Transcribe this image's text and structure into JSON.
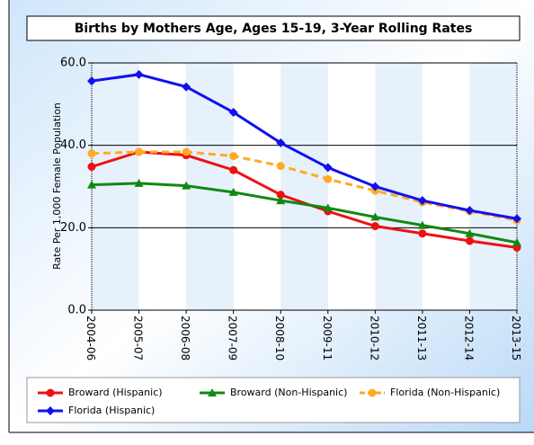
{
  "chart_data": {
    "type": "line",
    "title": "Births by Mothers Age, Ages 15-19, 3-Year Rolling Rates",
    "y_label": "Rate Per 1,000 Female Population",
    "categories": [
      "2004-06",
      "2005-07",
      "2006-08",
      "2007-09",
      "2008-10",
      "2009-11",
      "2010-12",
      "2011-13",
      "2012-14",
      "2013-15"
    ],
    "series": [
      {
        "name": "Broward (Hispanic)",
        "color": "#ee1111",
        "marker": "circle",
        "dash": false,
        "values": [
          34.8,
          38.4,
          37.6,
          34,
          28,
          24,
          20.4,
          18.6,
          16.8,
          15.2
        ]
      },
      {
        "name": "Broward (Non-Hispanic)",
        "color": "#118811",
        "marker": "triangle",
        "dash": false,
        "values": [
          30.4,
          30.8,
          30.2,
          28.6,
          26.6,
          24.8,
          22.6,
          20.6,
          18.6,
          16.4
        ]
      },
      {
        "name": "Florida (Non-Hispanic)",
        "color": "#ffaa22",
        "marker": "circle",
        "dash": true,
        "values": [
          38,
          38.4,
          38.4,
          37.4,
          35,
          31.8,
          29,
          26.2,
          24,
          21.8
        ]
      },
      {
        "name": "Florida (Hispanic)",
        "color": "#1111ee",
        "marker": "diamond",
        "dash": false,
        "values": [
          55.6,
          57.2,
          54.2,
          48,
          40.6,
          34.6,
          30,
          26.6,
          24.2,
          22.2
        ]
      }
    ],
    "ylim": [
      0,
      60
    ],
    "yticks": [
      {
        "value": 0,
        "label": "0.0"
      },
      {
        "value": 20,
        "label": "20.0"
      },
      {
        "value": 40,
        "label": "40.0"
      },
      {
        "value": 60,
        "label": "60.0"
      }
    ],
    "grid": true,
    "legend": "bottom"
  }
}
